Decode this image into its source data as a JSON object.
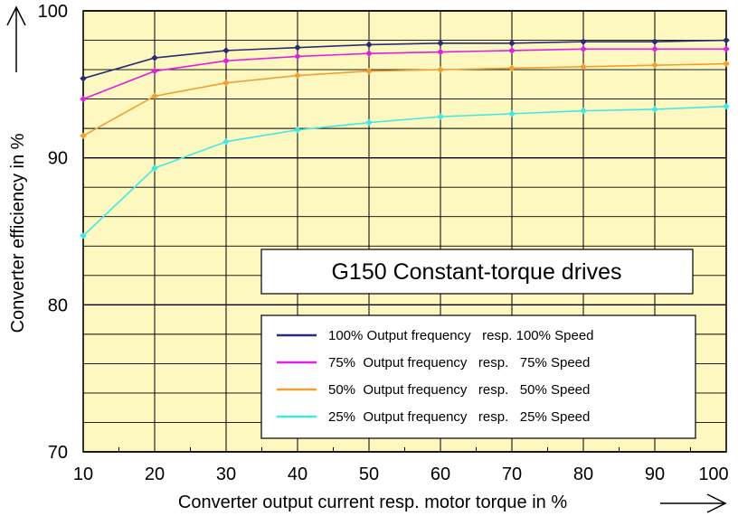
{
  "chart_data": {
    "type": "line",
    "title": "G150 Constant-torque drives",
    "xlabel": "Converter output current resp. motor torque in %",
    "ylabel": "Converter efficiency in  %",
    "x": [
      10,
      20,
      30,
      40,
      50,
      60,
      70,
      80,
      90,
      100
    ],
    "x_ticks": [
      "10",
      "20",
      "30",
      "40",
      "50",
      "60",
      "70",
      "80",
      "90",
      "100"
    ],
    "y_ticks": [
      "70",
      "80",
      "90",
      "100"
    ],
    "xlim": [
      10,
      100
    ],
    "ylim": [
      70,
      100
    ],
    "grid": true,
    "background_color": "#fdf8c0",
    "legend_position": "bottom-right",
    "series": [
      {
        "name": "100% Output frequency   resp. 100% Speed",
        "color": "#2a2a7a",
        "values": [
          95.4,
          96.8,
          97.3,
          97.5,
          97.7,
          97.8,
          97.8,
          97.9,
          97.9,
          98.0
        ]
      },
      {
        "name": "75%  Output frequency   resp.   75% Speed",
        "color": "#e020e0",
        "values": [
          94.0,
          95.9,
          96.6,
          96.9,
          97.1,
          97.2,
          97.3,
          97.4,
          97.4,
          97.4
        ]
      },
      {
        "name": "50%  Output frequency   resp.   50% Speed",
        "color": "#f0a030",
        "values": [
          91.5,
          94.2,
          95.1,
          95.6,
          95.9,
          96.0,
          96.1,
          96.2,
          96.3,
          96.4
        ]
      },
      {
        "name": "25%  Output frequency   resp.   25% Speed",
        "color": "#40e8e8",
        "values": [
          84.7,
          89.3,
          91.1,
          91.9,
          92.4,
          92.8,
          93.0,
          93.2,
          93.3,
          93.5
        ]
      }
    ]
  }
}
